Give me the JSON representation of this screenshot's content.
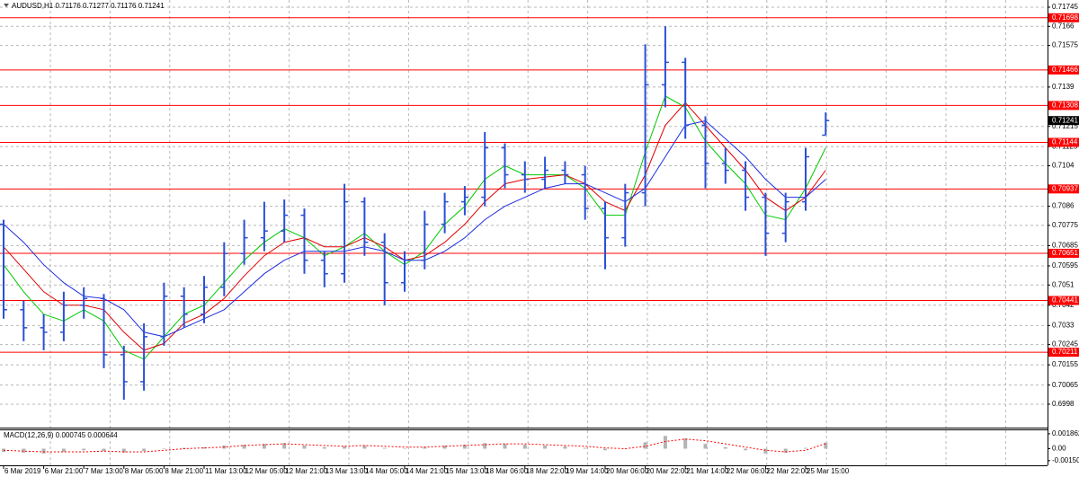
{
  "chart_data": [
    {
      "type": "ohlc",
      "title": "AUDUSD,H1  0.71176 0.71277 0.71176 0.71241",
      "categories": [
        "6 Mar 2019",
        null,
        "6 Mar 21:00",
        null,
        "7 Mar 13:00",
        null,
        "8 Mar 05:00",
        null,
        "8 Mar 21:00",
        null,
        "11 Mar 13:00",
        null,
        "12 Mar 05:00",
        null,
        "12 Mar 21:00",
        null,
        "13 Mar 13:00",
        null,
        "14 Mar 05:00",
        null,
        "14 Mar 21:00",
        null,
        "15 Mar 13:00",
        null,
        "18 Mar 06:00",
        null,
        "18 Mar 22:00",
        null,
        "19 Mar 14:00",
        null,
        "20 Mar 06:00",
        null,
        "20 Mar 22:00",
        null,
        "21 Mar 14:00",
        null,
        "22 Mar 06:00",
        null,
        "22 Mar 22:00",
        null,
        "25 Mar 15:00",
        null
      ],
      "open": [
        0.7078,
        0.704,
        0.7032,
        0.703,
        0.7042,
        0.7045,
        0.702,
        0.7008,
        0.7028,
        0.7046,
        0.7038,
        0.705,
        0.7065,
        0.7072,
        0.7075,
        0.7082,
        0.7062,
        0.7056,
        0.7088,
        0.707,
        0.7052,
        0.7062,
        0.7078,
        0.7088,
        0.709,
        0.7112,
        0.71,
        0.7098,
        0.7102,
        0.71,
        0.7085,
        0.7072,
        0.7092,
        0.714,
        0.715,
        0.7122,
        0.7105,
        0.7102,
        0.709,
        0.7074,
        0.7088,
        0.71176
      ],
      "high": [
        0.708,
        0.7044,
        0.7038,
        0.7048,
        0.705,
        0.7047,
        0.7024,
        0.7034,
        0.7052,
        0.705,
        0.7055,
        0.707,
        0.708,
        0.7088,
        0.7089,
        0.7085,
        0.7066,
        0.7096,
        0.709,
        0.7074,
        0.7066,
        0.7084,
        0.7092,
        0.7095,
        0.7119,
        0.7114,
        0.7106,
        0.7108,
        0.7106,
        0.7104,
        0.7088,
        0.7096,
        0.7158,
        0.7166,
        0.7152,
        0.7126,
        0.7112,
        0.7106,
        0.7092,
        0.7092,
        0.7112,
        0.71277
      ],
      "low": [
        0.7036,
        0.7026,
        0.7022,
        0.7026,
        0.7036,
        0.7014,
        0.7,
        0.7004,
        0.7024,
        0.7032,
        0.7034,
        0.7046,
        0.706,
        0.7066,
        0.707,
        0.7056,
        0.705,
        0.7052,
        0.7064,
        0.7042,
        0.7048,
        0.7058,
        0.7074,
        0.7082,
        0.7086,
        0.7094,
        0.7092,
        0.7094,
        0.7096,
        0.708,
        0.7058,
        0.7068,
        0.7086,
        0.713,
        0.7116,
        0.7094,
        0.7096,
        0.7084,
        0.7064,
        0.707,
        0.7084,
        0.71176
      ],
      "close": [
        0.704,
        0.7032,
        0.703,
        0.7042,
        0.7045,
        0.702,
        0.7008,
        0.7028,
        0.7046,
        0.7038,
        0.705,
        0.7065,
        0.7072,
        0.7075,
        0.7082,
        0.7062,
        0.7056,
        0.7088,
        0.707,
        0.7052,
        0.7062,
        0.7078,
        0.7088,
        0.709,
        0.7112,
        0.71,
        0.7098,
        0.7102,
        0.71,
        0.7085,
        0.7072,
        0.7092,
        0.714,
        0.715,
        0.7122,
        0.7105,
        0.7102,
        0.709,
        0.7074,
        0.7088,
        0.7108,
        0.71241
      ],
      "color": "#2a4fd6",
      "moving_averages": [
        {
          "color": "#00c800",
          "values": [
            0.706,
            0.7048,
            0.7038,
            0.7035,
            0.704,
            0.7035,
            0.7022,
            0.7018,
            0.7028,
            0.7038,
            0.7042,
            0.7052,
            0.7062,
            0.707,
            0.7076,
            0.7072,
            0.7064,
            0.7068,
            0.7074,
            0.7066,
            0.706,
            0.7066,
            0.7078,
            0.7086,
            0.7098,
            0.7104,
            0.71,
            0.71,
            0.71,
            0.7094,
            0.7082,
            0.7082,
            0.711,
            0.7135,
            0.713,
            0.7115,
            0.7105,
            0.7096,
            0.7082,
            0.708,
            0.7094,
            0.7112
          ]
        },
        {
          "color": "#e00000",
          "values": [
            0.7068,
            0.7058,
            0.7048,
            0.7042,
            0.7042,
            0.704,
            0.703,
            0.7022,
            0.7025,
            0.7034,
            0.7038,
            0.7045,
            0.7055,
            0.7064,
            0.707,
            0.7072,
            0.7068,
            0.7068,
            0.7072,
            0.7068,
            0.7062,
            0.7064,
            0.707,
            0.7078,
            0.7088,
            0.7096,
            0.7098,
            0.7099,
            0.71,
            0.7096,
            0.7088,
            0.7084,
            0.71,
            0.7122,
            0.7132,
            0.7122,
            0.7112,
            0.7102,
            0.709,
            0.7084,
            0.709,
            0.7102
          ]
        },
        {
          "color": "#1e2ee0",
          "values": [
            0.7078,
            0.707,
            0.706,
            0.7052,
            0.7046,
            0.7045,
            0.704,
            0.703,
            0.7028,
            0.7032,
            0.7036,
            0.704,
            0.7048,
            0.7056,
            0.7062,
            0.7066,
            0.7066,
            0.7066,
            0.7068,
            0.7066,
            0.7062,
            0.7062,
            0.7066,
            0.7072,
            0.708,
            0.7086,
            0.709,
            0.7094,
            0.7096,
            0.7096,
            0.7092,
            0.7088,
            0.7094,
            0.7108,
            0.7122,
            0.7124,
            0.7116,
            0.7108,
            0.7098,
            0.709,
            0.709,
            0.7098
          ]
        }
      ],
      "levels": {
        "color": "#ff0000",
        "values": [
          0.71698,
          0.71466,
          0.71308,
          0.71144,
          0.70937,
          0.70651,
          0.70441,
          0.70211
        ]
      },
      "ylim": [
        0.69876,
        0.71777
      ],
      "yticks": [
        0.71745,
        0.7166,
        0.71575,
        0.7139,
        0.71215,
        0.71125,
        0.7104,
        0.7086,
        0.70775,
        0.70685,
        0.70595,
        0.7051,
        0.7042,
        0.7033,
        0.70245,
        0.70155,
        0.70065,
        0.6998
      ],
      "grid": true
    },
    {
      "type": "macd",
      "title": "MACD(12,26,9) 0.000745 0.000644",
      "histogram": [
        -0.0004,
        -0.0005,
        -0.0006,
        -0.0004,
        -0.0002,
        -0.0003,
        -0.0005,
        -0.0003,
        0.0,
        0.0001,
        0.0002,
        0.0004,
        0.0005,
        0.0006,
        0.0007,
        0.0004,
        0.0002,
        0.0003,
        0.0004,
        0.0001,
        0.0,
        0.0002,
        0.0004,
        0.0005,
        0.0007,
        0.0006,
        0.0005,
        0.0004,
        0.0003,
        0.0001,
        -0.0002,
        0.0,
        0.0008,
        0.0016,
        0.0013,
        0.0006,
        0.0002,
        -0.0002,
        -0.0006,
        -0.0005,
        0.0001,
        0.000745
      ],
      "signal": [
        -0.0002,
        -0.0003,
        -0.0004,
        -0.0004,
        -0.0004,
        -0.0003,
        -0.0004,
        -0.0004,
        -0.0002,
        0.0,
        0.0001,
        0.0002,
        0.0004,
        0.0005,
        0.0006,
        0.0005,
        0.0004,
        0.0003,
        0.0004,
        0.0003,
        0.0002,
        0.0002,
        0.0003,
        0.0004,
        0.0005,
        0.0006,
        0.0006,
        0.0005,
        0.0004,
        0.0003,
        0.0001,
        0.0,
        0.0003,
        0.0009,
        0.0012,
        0.001,
        0.0006,
        0.0002,
        -0.0002,
        -0.0004,
        -0.0002,
        0.000644
      ],
      "histogram_color": "#b4b4b4",
      "signal_color": "#ff0000",
      "ylim": [
        -0.00208,
        0.0023
      ],
      "yticks": [
        0.001862,
        {
          "value": 0,
          "label": "0.00"
        },
        {
          "value": -0.0015,
          "label": "-0.00150"
        }
      ]
    }
  ]
}
